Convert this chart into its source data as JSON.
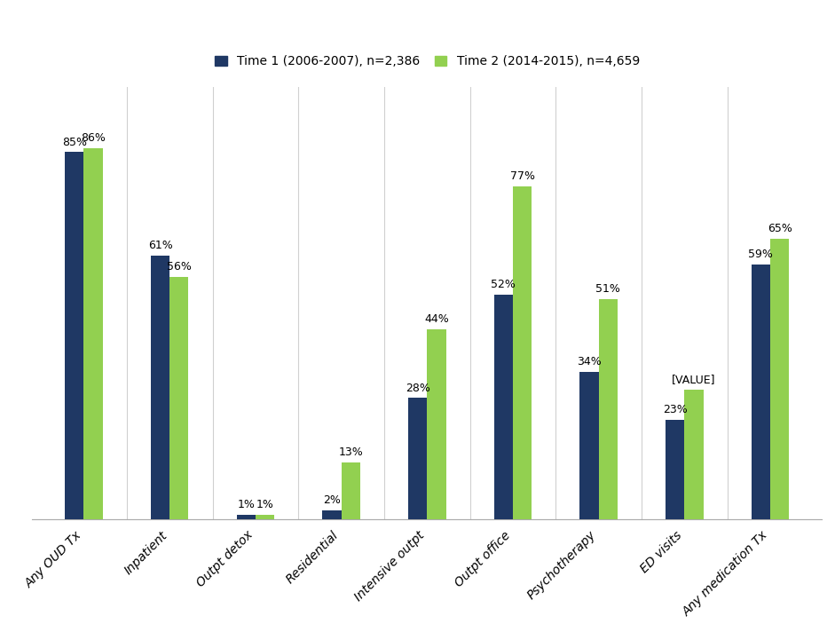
{
  "categories": [
    "Any OUD Tx",
    "Inpatient",
    "Outpt detox",
    "Residential",
    "Intensive outpt",
    "Outpt office",
    "Psychotherapy",
    "ED visits",
    "Any medication Tx"
  ],
  "time1_values": [
    85,
    61,
    1,
    2,
    28,
    52,
    34,
    23,
    59
  ],
  "time2_values": [
    86,
    56,
    1,
    13,
    44,
    77,
    51,
    30,
    65
  ],
  "time1_labels": [
    "85%",
    "61%",
    "1%",
    "2%",
    "28%",
    "52%",
    "34%",
    "23%",
    "59%"
  ],
  "time2_labels": [
    "86%",
    "56%",
    "1%",
    "13%",
    "44%",
    "77%",
    "51%",
    "[VALUE]",
    "65%"
  ],
  "color_time1": "#1F3864",
  "color_time2": "#92D050",
  "legend_time1": "Time 1 (2006-2007), n=2,386",
  "legend_time2": "Time 2 (2014-2015), n=4,659",
  "ylim": [
    0,
    100
  ],
  "bar_width": 0.22,
  "background_color": "#FFFFFF",
  "plot_bg_color": "#FFFFFF",
  "grid_color": "#D0D0D0",
  "label_fontsize": 9,
  "legend_fontsize": 10,
  "tick_fontsize": 10
}
